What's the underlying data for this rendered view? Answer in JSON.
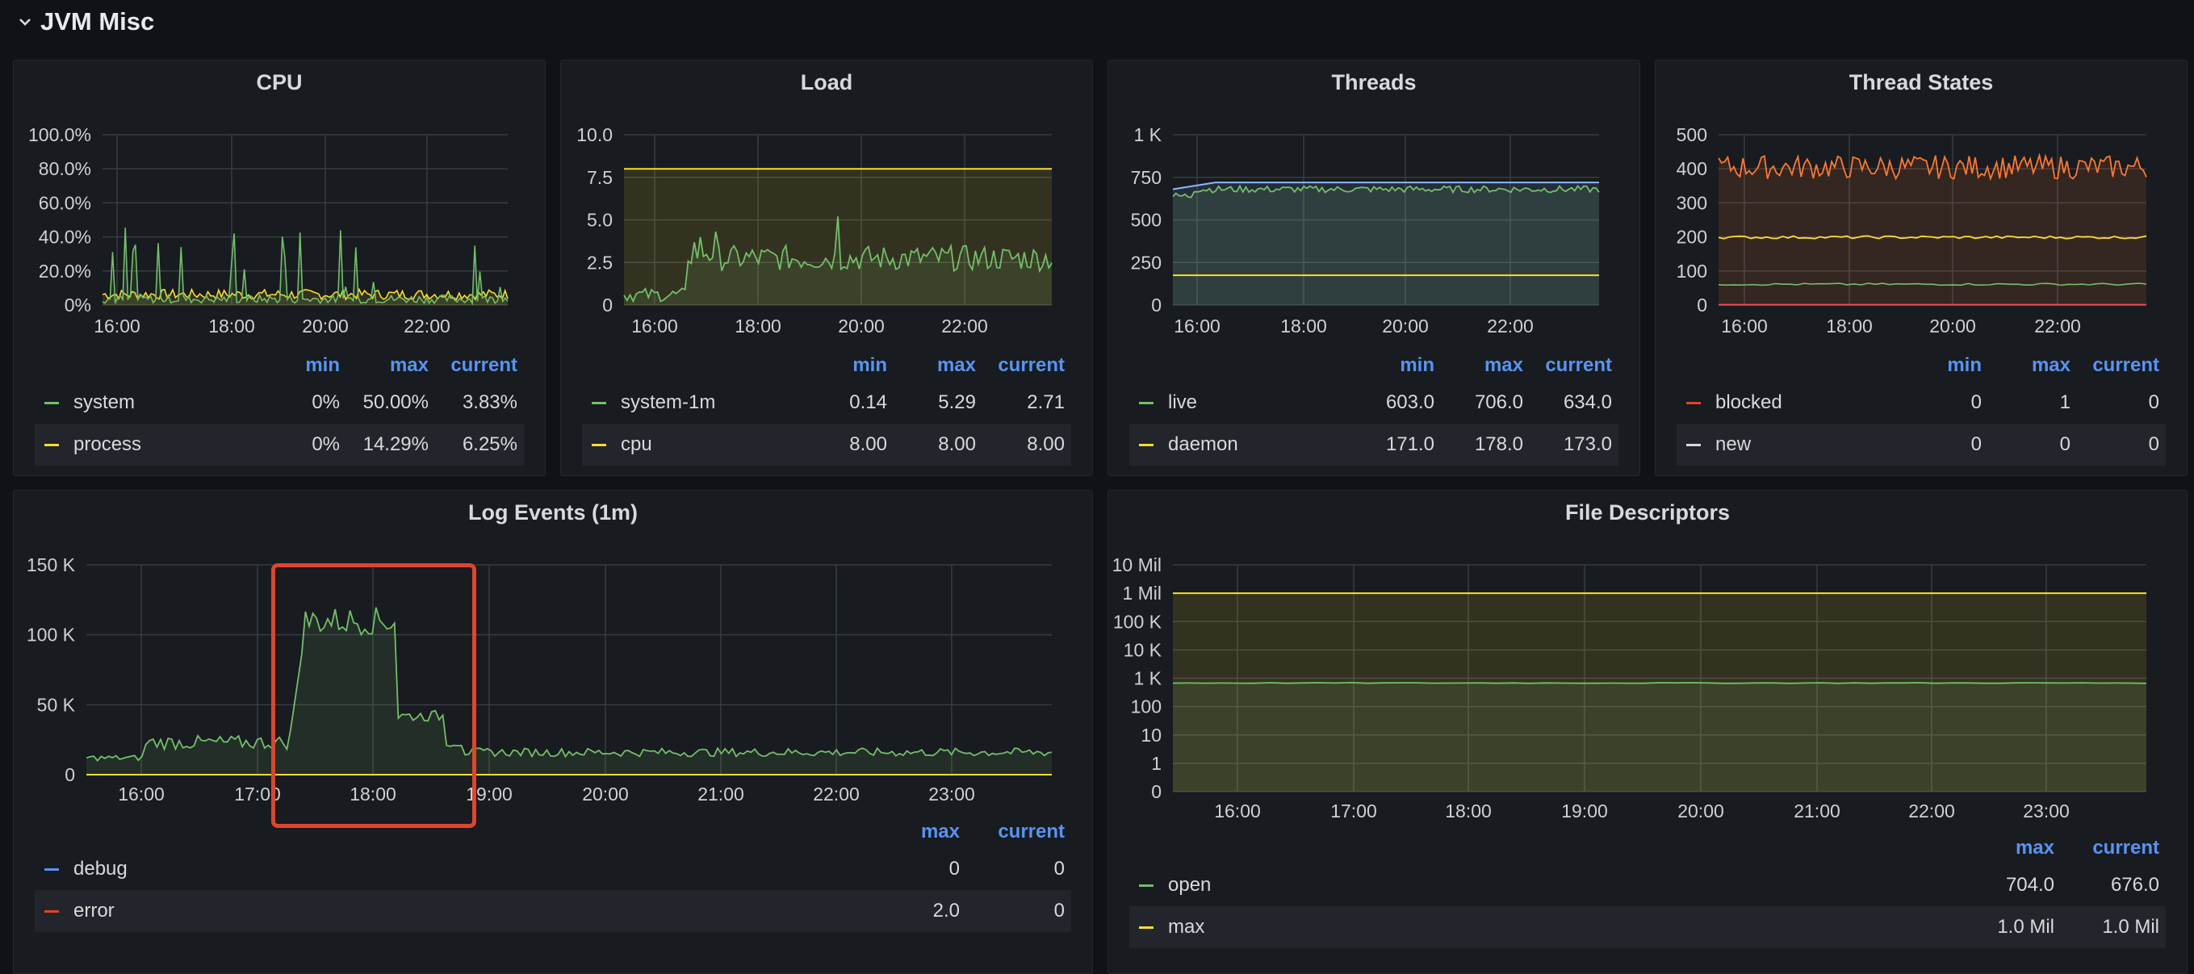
{
  "row": {
    "title": "JVM Misc"
  },
  "colors": {
    "green": "#73bf69",
    "yellow": "#fade2a",
    "blue": "#5794f2",
    "red": "#f2495c",
    "orange": "#ff7830",
    "teal": "#8ab8ff",
    "white": "#d8d9da"
  },
  "panels": [
    {
      "key": "cpu",
      "title": "CPU",
      "chart_data": {
        "type": "line",
        "x_ticks": [
          "16:00",
          "18:00",
          "20:00",
          "22:00"
        ],
        "y_ticks": [
          "0%",
          "20.0%",
          "40.0%",
          "60.0%",
          "80.0%",
          "100.0%"
        ],
        "ylim": [
          0,
          100
        ],
        "series": [
          {
            "name": "system",
            "color": "#73bf69",
            "min": 0,
            "max": 50,
            "base": 3.8,
            "spiky": true
          },
          {
            "name": "process",
            "color": "#fade2a",
            "min": 0,
            "max": 14.29,
            "base": 6.25
          }
        ]
      },
      "legend": {
        "headers": [
          "min",
          "max",
          "current"
        ],
        "rows": [
          {
            "name": "system",
            "color": "#73bf69",
            "values": [
              "0%",
              "50.00%",
              "3.83%"
            ]
          },
          {
            "name": "process",
            "color": "#fade2a",
            "values": [
              "0%",
              "14.29%",
              "6.25%"
            ]
          }
        ]
      }
    },
    {
      "key": "load",
      "title": "Load",
      "chart_data": {
        "type": "line",
        "x_ticks": [
          "16:00",
          "18:00",
          "20:00",
          "22:00"
        ],
        "y_ticks": [
          "0",
          "2.5",
          "5.0",
          "7.5",
          "10.0"
        ],
        "ylim": [
          0,
          10
        ],
        "series": [
          {
            "name": "system-1m",
            "color": "#73bf69",
            "min": 0.14,
            "max": 5.29,
            "current": 2.71
          },
          {
            "name": "cpu",
            "color": "#fade2a",
            "value": 8.0
          }
        ]
      },
      "legend": {
        "headers": [
          "min",
          "max",
          "current"
        ],
        "rows": [
          {
            "name": "system-1m",
            "color": "#73bf69",
            "values": [
              "0.14",
              "5.29",
              "2.71"
            ]
          },
          {
            "name": "cpu",
            "color": "#fade2a",
            "values": [
              "8.00",
              "8.00",
              "8.00"
            ]
          }
        ]
      }
    },
    {
      "key": "threads",
      "title": "Threads",
      "chart_data": {
        "type": "line",
        "x_ticks": [
          "16:00",
          "18:00",
          "20:00",
          "22:00"
        ],
        "y_ticks": [
          "0",
          "250",
          "500",
          "750",
          "1 K"
        ],
        "ylim": [
          0,
          1000
        ],
        "series": [
          {
            "name": "live",
            "color": "#73bf69",
            "min": 603,
            "max": 706,
            "current": 634
          },
          {
            "name": "daemon",
            "color": "#fade2a",
            "min": 171,
            "max": 178,
            "current": 173
          }
        ]
      },
      "legend": {
        "headers": [
          "min",
          "max",
          "current"
        ],
        "rows": [
          {
            "name": "live",
            "color": "#73bf69",
            "values": [
              "603.0",
              "706.0",
              "634.0"
            ]
          },
          {
            "name": "daemon",
            "color": "#fade2a",
            "values": [
              "171.0",
              "178.0",
              "173.0"
            ]
          }
        ]
      }
    },
    {
      "key": "thread-states",
      "title": "Thread States",
      "chart_data": {
        "type": "line",
        "x_ticks": [
          "16:00",
          "18:00",
          "20:00",
          "22:00"
        ],
        "y_ticks": [
          "0",
          "100",
          "200",
          "300",
          "400",
          "500"
        ],
        "ylim": [
          0,
          500
        ],
        "series": [
          {
            "name": "blocked",
            "color": "#f2495c",
            "min": 0,
            "max": 1,
            "current": 0
          },
          {
            "name": "new",
            "color": "#d8d9da",
            "min": 0,
            "max": 0,
            "current": 0
          }
        ]
      },
      "legend": {
        "headers": [
          "min",
          "max",
          "current"
        ],
        "rows": [
          {
            "name": "blocked",
            "color": "#e0452c",
            "values": [
              "0",
              "1",
              "0"
            ]
          },
          {
            "name": "new",
            "color": "#d8d9da",
            "values": [
              "0",
              "0",
              "0"
            ]
          }
        ]
      }
    },
    {
      "key": "log-events",
      "title": "Log Events (1m)",
      "chart_data": {
        "type": "line",
        "x_ticks": [
          "16:00",
          "17:00",
          "18:00",
          "19:00",
          "20:00",
          "21:00",
          "22:00",
          "23:00"
        ],
        "y_ticks": [
          "0",
          "50 K",
          "100 K",
          "150 K"
        ],
        "ylim": [
          0,
          150000
        ],
        "series": [
          {
            "name": "debug",
            "color": "#5794f2",
            "max": 0,
            "current": 0
          },
          {
            "name": "error",
            "color": "#f2495c",
            "max": 2.0,
            "current": 0
          }
        ]
      },
      "legend": {
        "headers": [
          "max",
          "current"
        ],
        "rows": [
          {
            "name": "debug",
            "color": "#5794f2",
            "values": [
              "0",
              "0"
            ]
          },
          {
            "name": "error",
            "color": "#e0452c",
            "values": [
              "2.0",
              "0"
            ]
          }
        ]
      }
    },
    {
      "key": "file-descriptors",
      "title": "File Descriptors",
      "chart_data": {
        "type": "line",
        "scale": "log",
        "x_ticks": [
          "16:00",
          "17:00",
          "18:00",
          "19:00",
          "20:00",
          "21:00",
          "22:00",
          "23:00"
        ],
        "y_ticks": [
          "0",
          "1",
          "10",
          "100",
          "1 K",
          "10 K",
          "100 K",
          "1 Mil",
          "10 Mil"
        ],
        "series": [
          {
            "name": "open",
            "color": "#73bf69",
            "max": 704,
            "current": 676
          },
          {
            "name": "max",
            "color": "#fade2a",
            "max": 1000000,
            "current": 1000000
          }
        ]
      },
      "legend": {
        "headers": [
          "max",
          "current"
        ],
        "rows": [
          {
            "name": "open",
            "color": "#73bf69",
            "values": [
              "704.0",
              "676.0"
            ]
          },
          {
            "name": "max",
            "color": "#fade2a",
            "values": [
              "1.0 Mil",
              "1.0 Mil"
            ]
          }
        ]
      }
    }
  ]
}
